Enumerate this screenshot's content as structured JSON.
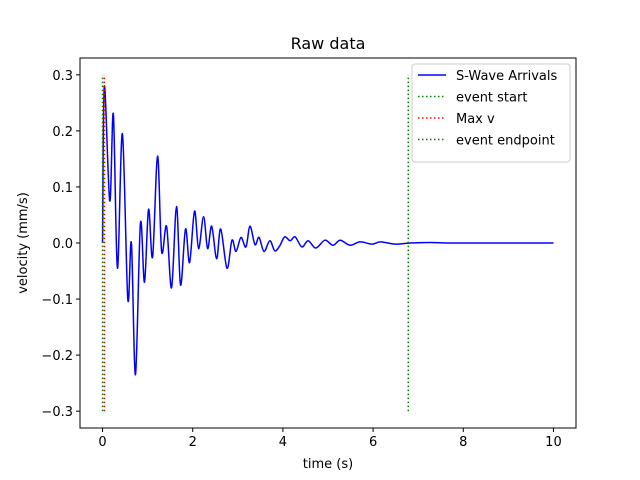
{
  "chart_data": {
    "type": "line",
    "title": "Raw data",
    "x_label": "time (s)",
    "y_label": "velocity (mm/s)",
    "xlim": [
      -0.5,
      10.5
    ],
    "ylim": [
      -0.33,
      0.33
    ],
    "xticks": [
      0,
      2,
      4,
      6,
      8,
      10
    ],
    "yticks": [
      {
        "value": -0.3,
        "label": "−0.3"
      },
      {
        "value": -0.2,
        "label": "−0.2"
      },
      {
        "value": -0.1,
        "label": "−0.1"
      },
      {
        "value": 0,
        "label": "0.0"
      },
      0.1,
      0.2,
      0.3
    ],
    "legend": "upper right",
    "series": [
      {
        "name": "S-Wave Arrivals",
        "color": "#0000ff",
        "style": "solid",
        "x": [
          0,
          0.04,
          0.16,
          0.24,
          0.33,
          0.44,
          0.56,
          0.64,
          0.73,
          0.84,
          0.93,
          1.02,
          1.11,
          1.22,
          1.31,
          1.42,
          1.53,
          1.64,
          1.73,
          1.84,
          1.93,
          2.04,
          2.13,
          2.24,
          2.33,
          2.42,
          2.53,
          2.62,
          2.76,
          2.87,
          2.96,
          3.07,
          3.18,
          3.27,
          3.38,
          3.47,
          3.58,
          3.71,
          3.82,
          3.93,
          4.04,
          4.16,
          4.27,
          4.42,
          4.56,
          4.73,
          4.93,
          5.11,
          5.27,
          5.49,
          5.71,
          5.98,
          6.16,
          6.49,
          6.82,
          7.27,
          7.71,
          8.38,
          10
        ],
        "values": [
          0,
          0.28,
          0.075,
          0.23,
          -0.045,
          0.195,
          -0.1,
          0,
          -0.235,
          0.035,
          -0.07,
          0.06,
          -0.025,
          0.155,
          -0.015,
          0.03,
          -0.08,
          0.065,
          -0.075,
          0.025,
          -0.035,
          0.057,
          -0.01,
          0.047,
          -0.01,
          0.03,
          -0.028,
          0.025,
          -0.045,
          0.005,
          -0.015,
          0.01,
          -0.007,
          0.03,
          -0.003,
          0.01,
          -0.015,
          0.004,
          -0.014,
          -0.005,
          0.011,
          0.004,
          0.011,
          -0.007,
          0.004,
          -0.009,
          0.005,
          -0.004,
          0.005,
          -0.004,
          0.002,
          -0.002,
          0.002,
          -0.002,
          0,
          0.001,
          0,
          0,
          0
        ]
      },
      {
        "name": "event start",
        "color": "#008000",
        "style": "dotted",
        "x": [
          0,
          0
        ],
        "values": [
          -0.3,
          0.3
        ]
      },
      {
        "name": "Max v",
        "color": "#ff0000",
        "style": "dotted",
        "x": [
          0.04,
          0.04
        ],
        "values": [
          -0.3,
          0.3
        ]
      },
      {
        "name": "event endpoint",
        "color": "#008000",
        "style": "dotted",
        "x": [
          6.78,
          6.78
        ],
        "values": [
          -0.3,
          0.3
        ]
      }
    ]
  }
}
